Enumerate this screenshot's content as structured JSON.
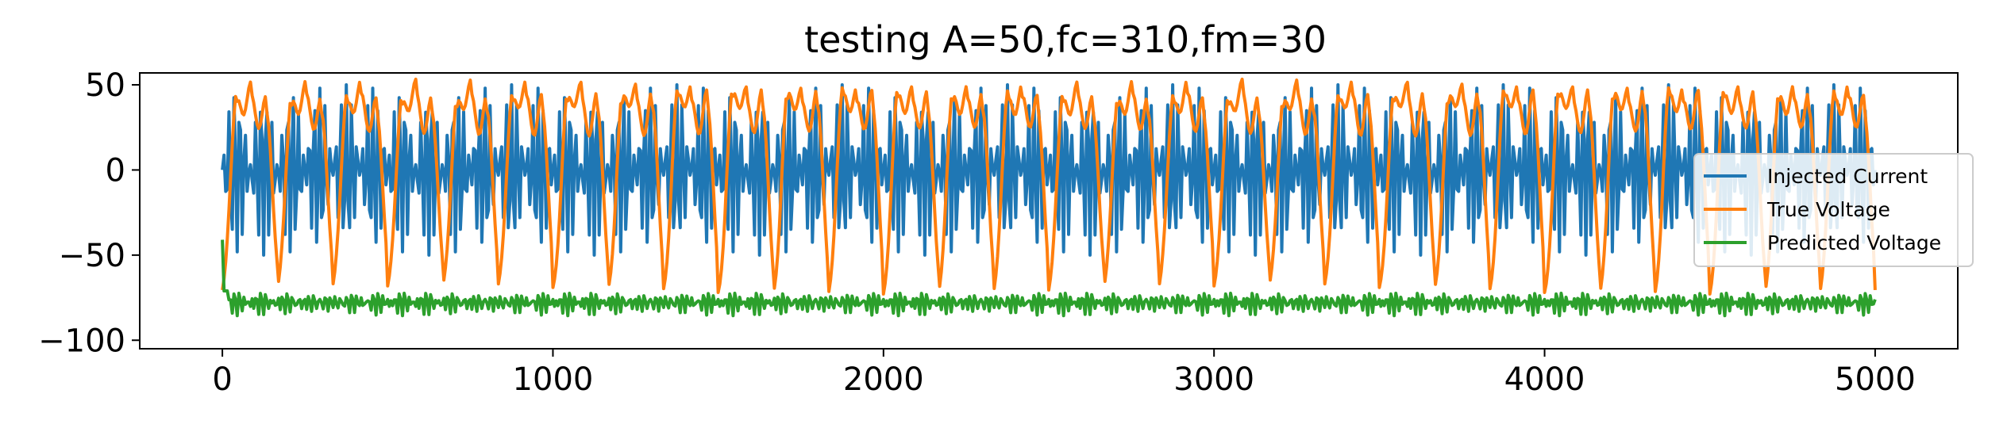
{
  "chart_data": {
    "type": "line",
    "title": "testing A=50,fc=310,fm=30",
    "xlabel": "",
    "ylabel": "",
    "xlim": [
      -250,
      5250
    ],
    "ylim": [
      -105,
      57
    ],
    "xticks": [
      0,
      1000,
      2000,
      3000,
      4000,
      5000
    ],
    "xtick_labels": [
      "0",
      "1000",
      "2000",
      "3000",
      "4000",
      "5000"
    ],
    "yticks": [
      50,
      0,
      -50,
      -100
    ],
    "ytick_labels": [
      "50",
      "0",
      "−50",
      "−100"
    ],
    "grid": false,
    "legend_position": "center-right",
    "x": {
      "start": 0,
      "end": 5000,
      "step": 5
    },
    "series": [
      {
        "name": "Injected Current",
        "color": "#1f77b4",
        "description_values": {
          "amplitude": 50,
          "carrier_frequency": 310,
          "modulation_frequency": 30,
          "min": -50,
          "max": 50
        }
      },
      {
        "name": "True Voltage",
        "color": "#ff7f0e",
        "description_values": {
          "rest_level": -77,
          "spike_peak": 41,
          "spikes_per_cycle": 3
        }
      },
      {
        "name": "Predicted Voltage",
        "color": "#2ca02c",
        "description_values": {
          "first_value": -41,
          "mean_level": -78,
          "min": -98,
          "max": -71
        }
      }
    ]
  }
}
